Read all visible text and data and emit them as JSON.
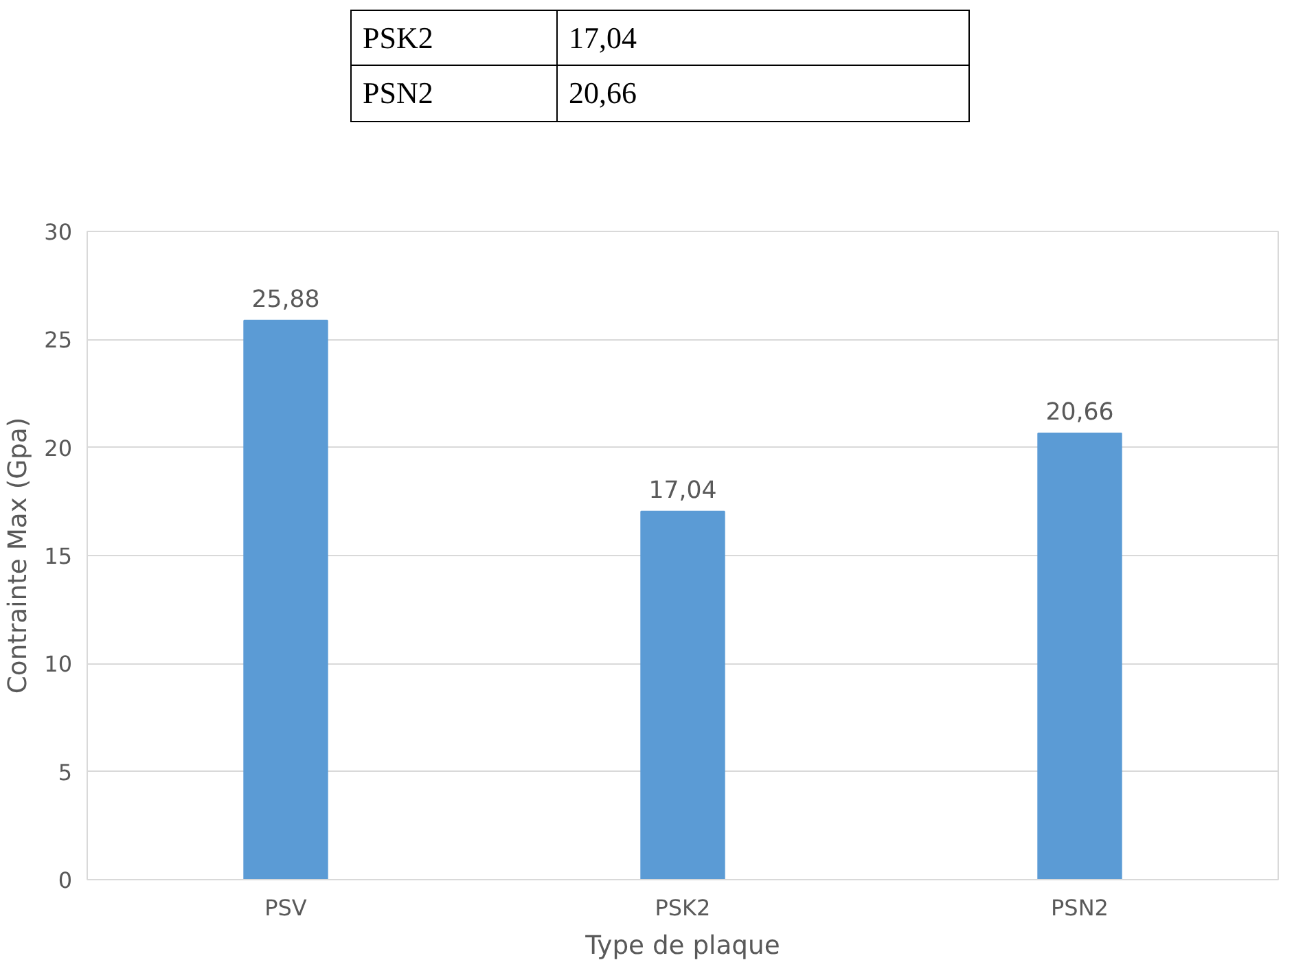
{
  "chart_data": {
    "type": "bar",
    "xlabel": "Type de plaque",
    "ylabel": "Contrainte Max (Gpa)",
    "annotations": [
      [
        "PSK2",
        "17,04"
      ],
      [
        "PSN2",
        "20,66"
      ]
    ],
    "categories": [
      "PSV",
      "PSK2",
      "PSN2"
    ],
    "values": [
      25.88,
      17.04,
      20.66
    ],
    "value_labels": [
      "25,88",
      "17,04",
      "20,66"
    ],
    "color": "#5b9bd5",
    "ylim": [
      0,
      30
    ],
    "yticks": [
      0,
      5,
      10,
      15,
      20,
      25,
      30
    ],
    "grid": "y"
  }
}
